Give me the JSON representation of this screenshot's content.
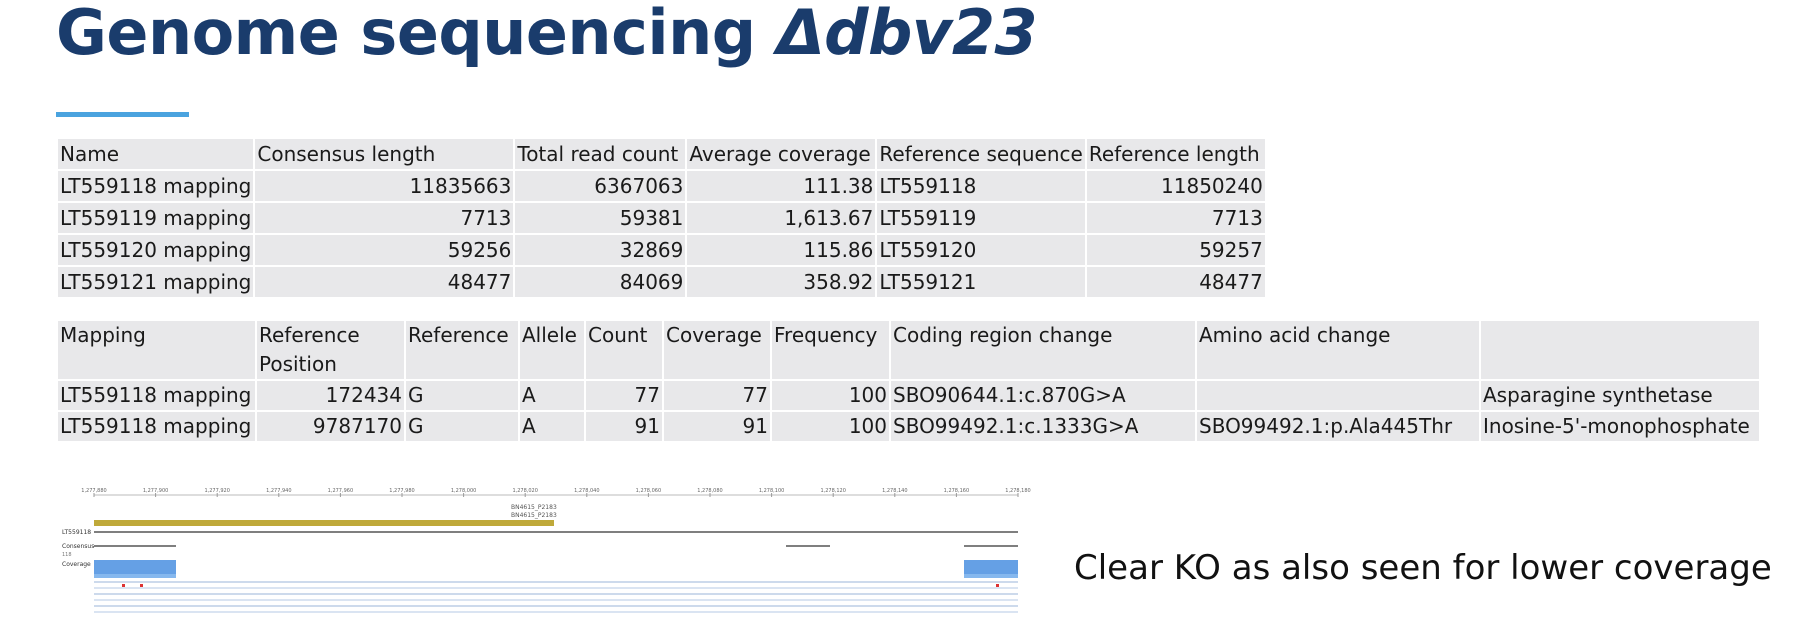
{
  "title": {
    "main": "Genome sequencing ",
    "gene": "Δdbv23"
  },
  "table1": {
    "headers": [
      "Name",
      "Consensus length",
      "Total read count",
      "Average coverage",
      "Reference sequence",
      "Reference length"
    ],
    "rows": [
      [
        "LT559118 mapping",
        "11835663",
        "6367063",
        "111.38",
        "LT559118",
        "11850240"
      ],
      [
        "LT559119 mapping",
        "7713",
        "59381",
        "1,613.67",
        "LT559119",
        "7713"
      ],
      [
        "LT559120 mapping",
        "59256",
        "32869",
        "115.86",
        "LT559120",
        "59257"
      ],
      [
        "LT559121 mapping",
        "48477",
        "84069",
        "358.92",
        "LT559121",
        "48477"
      ]
    ]
  },
  "table2": {
    "headers": [
      "Mapping",
      "Reference Position",
      "Reference",
      "Allele",
      "Count",
      "Coverage",
      "Frequency",
      "Coding region change",
      "Amino acid change",
      ""
    ],
    "rows": [
      [
        "LT559118 mapping",
        "172434",
        "G",
        "A",
        "77",
        "77",
        "100",
        "SBO90644.1:c.870G>A",
        "",
        "Asparagine synthetase"
      ],
      [
        "LT559118 mapping",
        "9787170",
        "G",
        "A",
        "91",
        "91",
        "100",
        "SBO99492.1:c.1333G>A",
        "SBO99492.1:p.Ala445Thr",
        "Inosine-5'-monophosphate"
      ]
    ]
  },
  "browser": {
    "ruler_ticks": [
      "1,277,880",
      "1,277,900",
      "1,277,920",
      "1,277,940",
      "1,277,960",
      "1,277,980",
      "1,278,000",
      "1,278,020",
      "1,278,040",
      "1,278,060",
      "1,278,080",
      "1,278,100",
      "1,278,120",
      "1,278,140",
      "1,278,160",
      "1,278,180"
    ],
    "gene_labels": [
      "BN4615_P2183",
      "BN4615_P2183"
    ],
    "track_labels": {
      "reference": "LT559118",
      "consensus": "Consensus",
      "consensus_sub": "118",
      "coverage": "Coverage"
    }
  },
  "caption": "Clear KO as also seen for lower coverage",
  "colors": {
    "title": "#1a3c6c",
    "accent": "#4aa3df",
    "cell": "#e8e8ea",
    "gene_bar": "#bfa93a",
    "coverage": "#4a8fe0"
  }
}
